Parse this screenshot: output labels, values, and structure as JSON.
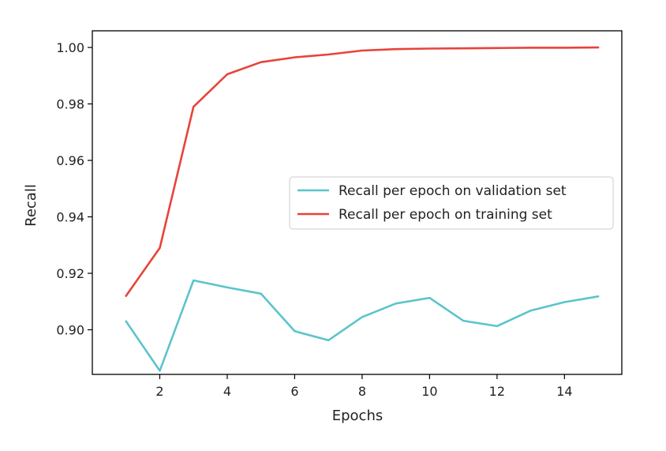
{
  "chart_data": {
    "type": "line",
    "xlabel": "Epochs",
    "ylabel": "Recall",
    "xlim": [
      0.0,
      15.7
    ],
    "ylim": [
      0.8842,
      1.0059
    ],
    "xticks": [
      2,
      4,
      6,
      8,
      10,
      12,
      14
    ],
    "yticks": [
      0.9,
      0.92,
      0.94,
      0.96,
      0.98,
      1.0
    ],
    "xtick_labels": [
      "2",
      "4",
      "6",
      "8",
      "10",
      "12",
      "14"
    ],
    "ytick_labels": [
      "0.90",
      "0.92",
      "0.94",
      "0.96",
      "0.98",
      "1.00"
    ],
    "grid": false,
    "legend_position": "center-right",
    "x": [
      1,
      2,
      3,
      4,
      5,
      6,
      7,
      8,
      9,
      10,
      11,
      12,
      13,
      14,
      15
    ],
    "series": [
      {
        "name": "Recall per epoch on validation set",
        "color": "#5bc4cc",
        "values": [
          0.903,
          0.8855,
          0.9175,
          0.915,
          0.9128,
          0.8995,
          0.8963,
          0.9045,
          0.9093,
          0.9113,
          0.9032,
          0.9013,
          0.9068,
          0.9098,
          0.9118
        ]
      },
      {
        "name": "Recall per epoch on training set",
        "color": "#e8433a",
        "values": [
          0.912,
          0.929,
          0.979,
          0.9905,
          0.9948,
          0.9965,
          0.9975,
          0.9989,
          0.9994,
          0.9996,
          0.9997,
          0.9998,
          0.9999,
          0.9999,
          1.0
        ]
      }
    ]
  }
}
